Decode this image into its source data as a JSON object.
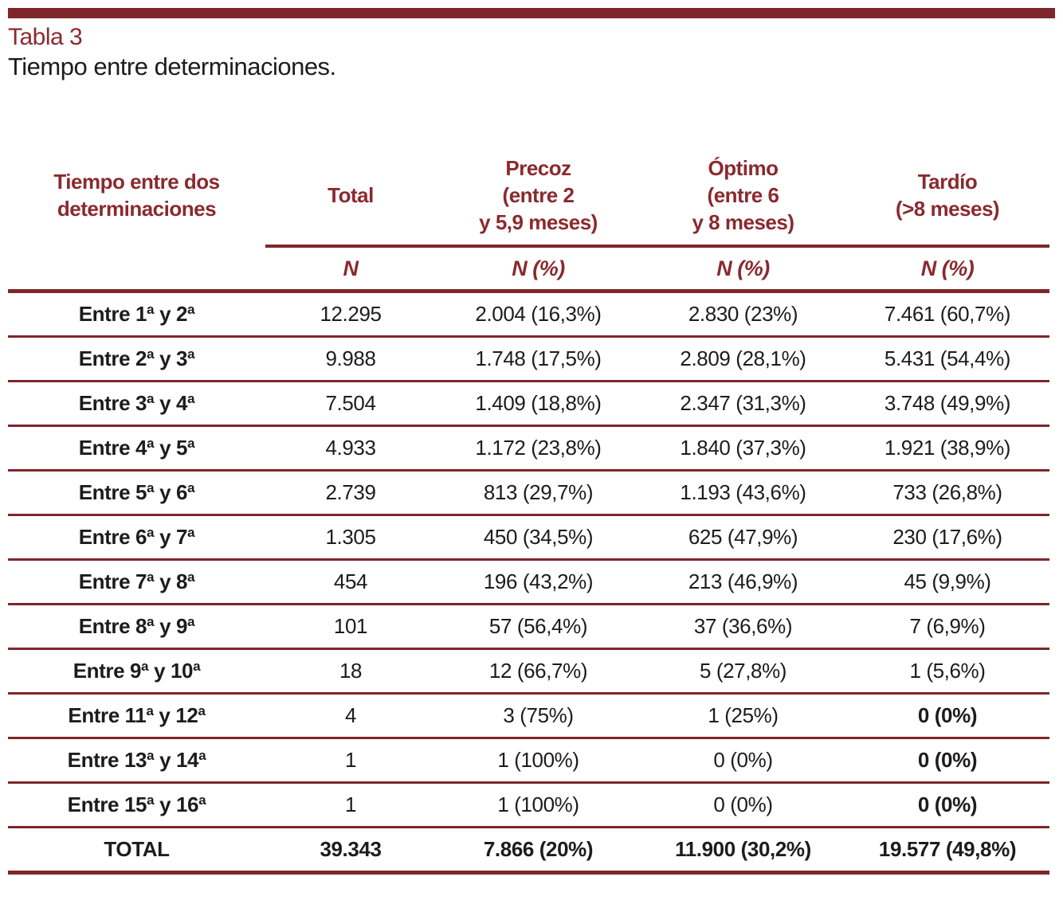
{
  "colors": {
    "accent": "#7E2629",
    "accent_text": "#8A2A2E",
    "text": "#1C1C1C"
  },
  "title": {
    "label": "Tabla 3",
    "caption": "Tiempo entre determinaciones."
  },
  "table": {
    "row_header": "Tiempo entre dos\ndeterminaciones",
    "col_headers": [
      "Total",
      "Precoz\n(entre 2\ny 5,9 meses)",
      "Óptimo\n(entre 6\ny 8 meses)",
      "Tardío\n(>8 meses)"
    ],
    "subheaders": [
      "N",
      "N (%)",
      "N (%)",
      "N (%)"
    ],
    "rows": [
      {
        "label": "Entre 1ª y 2ª",
        "cells": [
          "12.295",
          "2.004 (16,3%)",
          "2.830 (23%)",
          "7.461 (60,7%)"
        ],
        "bold_cells": []
      },
      {
        "label": "Entre 2ª y 3ª",
        "cells": [
          "9.988",
          "1.748 (17,5%)",
          "2.809 (28,1%)",
          "5.431 (54,4%)"
        ],
        "bold_cells": []
      },
      {
        "label": "Entre 3ª y 4ª",
        "cells": [
          "7.504",
          "1.409 (18,8%)",
          "2.347 (31,3%)",
          "3.748 (49,9%)"
        ],
        "bold_cells": []
      },
      {
        "label": "Entre 4ª y 5ª",
        "cells": [
          "4.933",
          "1.172 (23,8%)",
          "1.840 (37,3%)",
          "1.921 (38,9%)"
        ],
        "bold_cells": []
      },
      {
        "label": "Entre 5ª y 6ª",
        "cells": [
          "2.739",
          "813 (29,7%)",
          "1.193 (43,6%)",
          "733 (26,8%)"
        ],
        "bold_cells": []
      },
      {
        "label": "Entre 6ª y 7ª",
        "cells": [
          "1.305",
          "450 (34,5%)",
          "625 (47,9%)",
          "230 (17,6%)"
        ],
        "bold_cells": []
      },
      {
        "label": "Entre 7ª y 8ª",
        "cells": [
          "454",
          "196 (43,2%)",
          "213 (46,9%)",
          "45 (9,9%)"
        ],
        "bold_cells": []
      },
      {
        "label": "Entre 8ª y 9ª",
        "cells": [
          "101",
          "57 (56,4%)",
          "37 (36,6%)",
          "7 (6,9%)"
        ],
        "bold_cells": []
      },
      {
        "label": "Entre 9ª y 10ª",
        "cells": [
          "18",
          "12 (66,7%)",
          "5 (27,8%)",
          "1 (5,6%)"
        ],
        "bold_cells": []
      },
      {
        "label": "Entre 11ª y 12ª",
        "cells": [
          "4",
          "3 (75%)",
          "1 (25%)",
          "0 (0%)"
        ],
        "bold_cells": [
          3
        ]
      },
      {
        "label": "Entre 13ª y 14ª",
        "cells": [
          "1",
          "1 (100%)",
          "0 (0%)",
          "0 (0%)"
        ],
        "bold_cells": [
          3
        ]
      },
      {
        "label": "Entre 15ª y 16ª",
        "cells": [
          "1",
          "1 (100%)",
          "0 (0%)",
          "0 (0%)"
        ],
        "bold_cells": [
          3
        ]
      }
    ],
    "total_row": {
      "label": "TOTAL",
      "cells": [
        "39.343",
        "7.866 (20%)",
        "11.900 (30,2%)",
        "19.577 (49,8%)"
      ]
    }
  }
}
